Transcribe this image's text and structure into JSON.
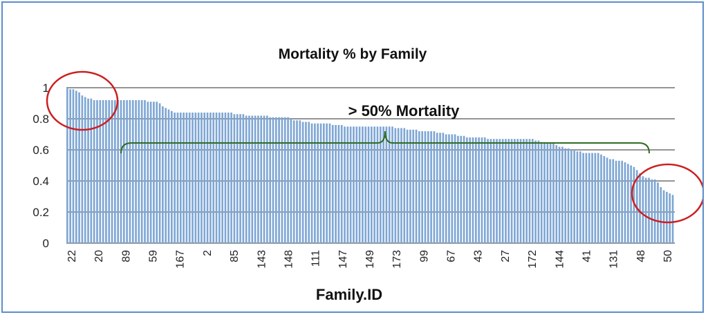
{
  "chart_data": {
    "type": "bar",
    "title": "Mortality % by Family",
    "xlabel": "Family.ID",
    "ylabel": "",
    "ylim": [
      0,
      1
    ],
    "yticks": [
      "0",
      "0.2",
      "0.4",
      "0.6",
      "0.8",
      "1"
    ],
    "grid": true,
    "tick_labels": [
      "22",
      "20",
      "89",
      "59",
      "167",
      "2",
      "85",
      "143",
      "148",
      "111",
      "147",
      "149",
      "173",
      "99",
      "67",
      "43",
      "27",
      "172",
      "144",
      "41",
      "131",
      "48",
      "50"
    ],
    "values": [
      1.0,
      0.99,
      0.99,
      0.98,
      0.97,
      0.95,
      0.94,
      0.93,
      0.93,
      0.92,
      0.92,
      0.92,
      0.92,
      0.92,
      0.92,
      0.92,
      0.92,
      0.92,
      0.92,
      0.92,
      0.92,
      0.92,
      0.92,
      0.92,
      0.92,
      0.92,
      0.92,
      0.91,
      0.91,
      0.91,
      0.91,
      0.9,
      0.88,
      0.87,
      0.86,
      0.85,
      0.84,
      0.84,
      0.84,
      0.84,
      0.84,
      0.84,
      0.84,
      0.84,
      0.84,
      0.84,
      0.84,
      0.84,
      0.84,
      0.84,
      0.84,
      0.84,
      0.84,
      0.84,
      0.84,
      0.84,
      0.83,
      0.83,
      0.83,
      0.83,
      0.82,
      0.82,
      0.82,
      0.82,
      0.82,
      0.82,
      0.82,
      0.82,
      0.81,
      0.81,
      0.81,
      0.81,
      0.81,
      0.81,
      0.81,
      0.8,
      0.79,
      0.79,
      0.79,
      0.78,
      0.78,
      0.78,
      0.77,
      0.77,
      0.77,
      0.77,
      0.77,
      0.77,
      0.77,
      0.76,
      0.76,
      0.76,
      0.76,
      0.75,
      0.75,
      0.75,
      0.75,
      0.75,
      0.75,
      0.75,
      0.75,
      0.75,
      0.75,
      0.75,
      0.75,
      0.75,
      0.75,
      0.75,
      0.75,
      0.75,
      0.74,
      0.74,
      0.74,
      0.74,
      0.73,
      0.73,
      0.73,
      0.73,
      0.72,
      0.72,
      0.72,
      0.72,
      0.72,
      0.72,
      0.71,
      0.71,
      0.71,
      0.7,
      0.7,
      0.7,
      0.7,
      0.69,
      0.69,
      0.69,
      0.68,
      0.68,
      0.68,
      0.68,
      0.68,
      0.68,
      0.68,
      0.67,
      0.67,
      0.67,
      0.67,
      0.67,
      0.67,
      0.67,
      0.67,
      0.67,
      0.67,
      0.67,
      0.67,
      0.67,
      0.67,
      0.67,
      0.67,
      0.66,
      0.66,
      0.65,
      0.65,
      0.64,
      0.64,
      0.64,
      0.63,
      0.62,
      0.62,
      0.61,
      0.61,
      0.6,
      0.6,
      0.59,
      0.59,
      0.58,
      0.58,
      0.58,
      0.58,
      0.58,
      0.58,
      0.57,
      0.56,
      0.55,
      0.54,
      0.54,
      0.53,
      0.53,
      0.53,
      0.52,
      0.51,
      0.5,
      0.49,
      0.47,
      0.45,
      0.43,
      0.42,
      0.42,
      0.41,
      0.41,
      0.39,
      0.36,
      0.34,
      0.33,
      0.32,
      0.31
    ],
    "bar_color": "#7ea6d4",
    "grid_color": "#555555",
    "annotations": {
      "bracket_label": "> 50% Mortality",
      "bracket_color": "#2e6b1f",
      "circle_color": "#cc1f1f"
    }
  }
}
